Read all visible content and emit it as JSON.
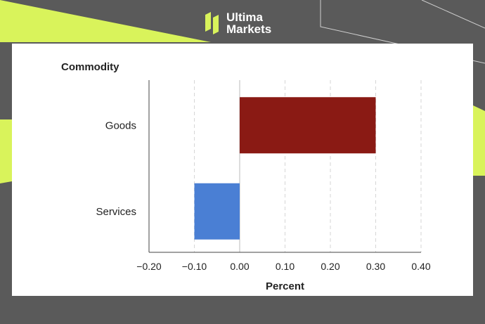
{
  "brand": {
    "name_line1": "Ultima",
    "name_line2": "Markets"
  },
  "colors": {
    "accent": "#d9f35b",
    "background": "#5a5a5a",
    "panel": "#ffffff"
  },
  "chart_data": {
    "type": "bar",
    "orientation": "horizontal",
    "title": "Commodity",
    "xlabel": "Percent",
    "ylabel": "",
    "categories": [
      "Goods",
      "Services"
    ],
    "values": [
      0.3,
      -0.1
    ],
    "colors": [
      "#8a1a14",
      "#4a7fd4"
    ],
    "xlim": [
      -0.2,
      0.4
    ],
    "xticks": [
      -0.2,
      -0.1,
      0.0,
      0.1,
      0.2,
      0.3,
      0.4
    ],
    "xtick_labels": [
      "−0.20",
      "−0.10",
      "0.00",
      "0.10",
      "0.20",
      "0.30",
      "0.40"
    ],
    "grid": true
  }
}
